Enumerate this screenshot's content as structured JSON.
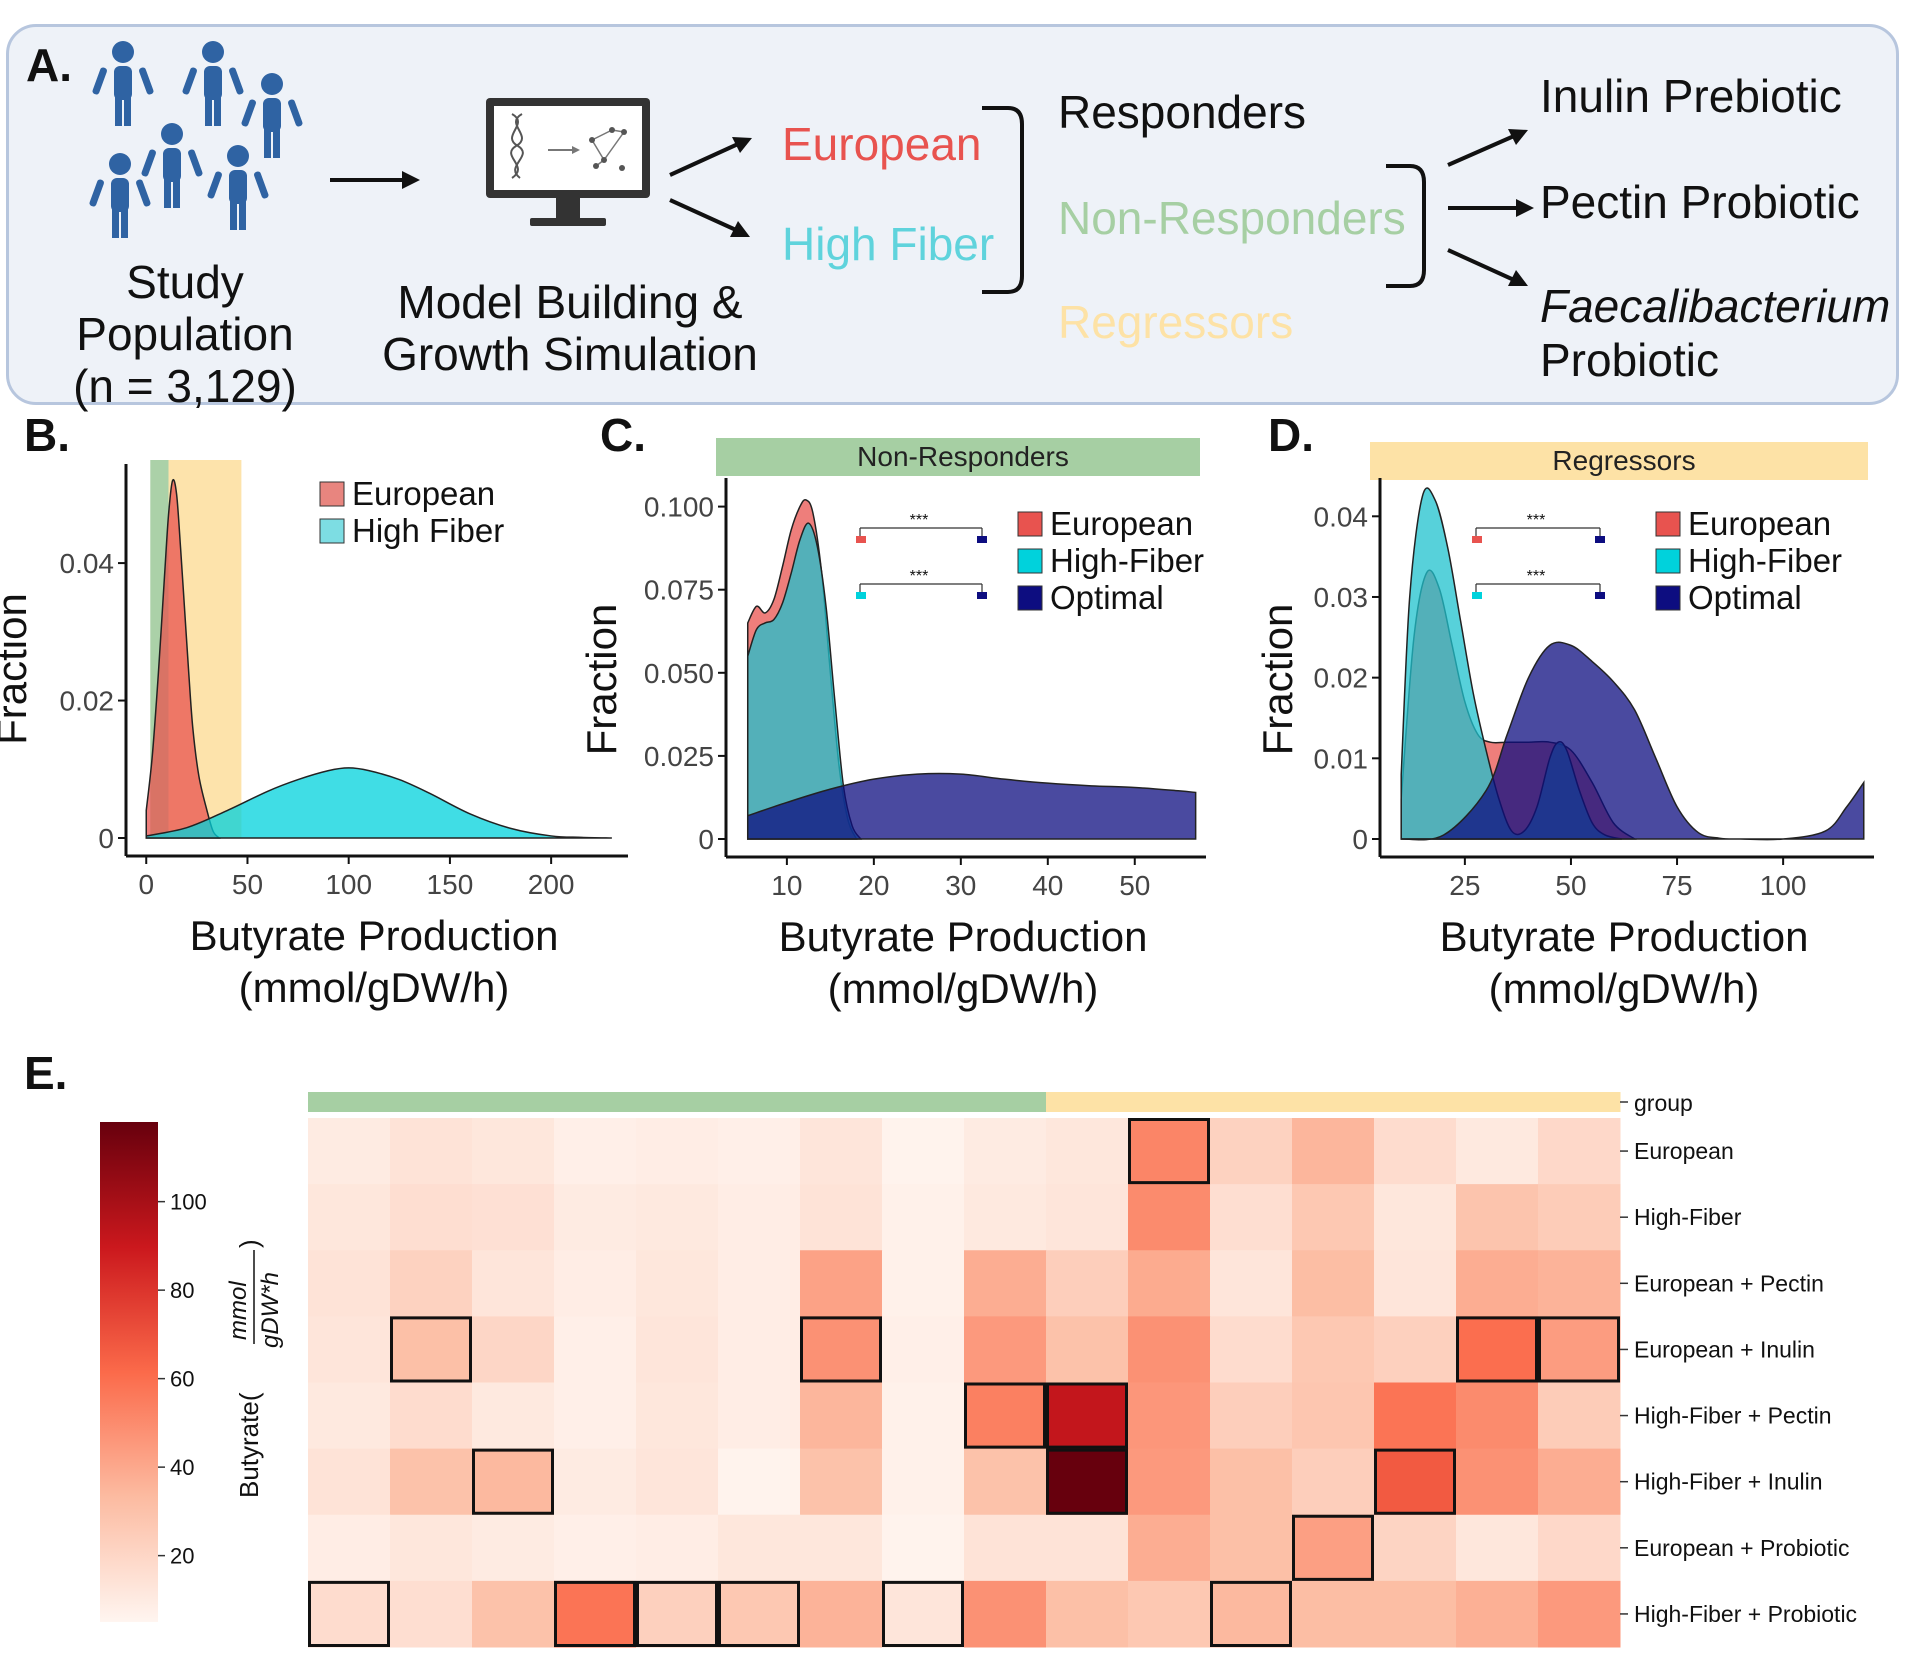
{
  "panel_a": {
    "label": "A.",
    "population_lines": [
      "Study",
      "Population",
      "(n = 3,129)"
    ],
    "model_lines": [
      "Model Building &",
      "Growth Simulation"
    ],
    "diets": [
      {
        "text": "European",
        "color": "#e8534f"
      },
      {
        "text": "High Fiber",
        "color": "#5fd3dc"
      }
    ],
    "responses": [
      {
        "text": "Responders",
        "color": "#111111"
      },
      {
        "text": "Non-Responders",
        "color": "#a6cfa3"
      },
      {
        "text": "Regressors",
        "color": "#fde2a6"
      }
    ],
    "treatments": [
      "Inulin Prebiotic",
      "Pectin Probiotic"
    ],
    "treatment3_italic": "Faecalibacterium",
    "treatment3_rest": "Probiotic",
    "icons": [
      "person-icon",
      "monitor-icon",
      "dna-icon",
      "network-icon",
      "arrow-icon"
    ]
  },
  "panel_labels": {
    "b": "B.",
    "c": "C.",
    "d": "D.",
    "e": "E."
  },
  "chart_data": [
    {
      "id": "B",
      "type": "area",
      "xlabel": [
        "Butyrate Production",
        "(mmol/gDW/h)"
      ],
      "ylabel": "Fraction",
      "xlim": [
        -10,
        235
      ],
      "ylim": [
        0,
        0.055
      ],
      "xticks": [
        0,
        50,
        100,
        150,
        200
      ],
      "xtick_labels": [
        "0",
        "50",
        "100",
        "150",
        "200"
      ],
      "yticks": [
        0,
        0.02,
        0.04
      ],
      "ytick_labels": [
        "0",
        "0.02",
        "0.04"
      ],
      "shaded_bands": [
        {
          "from": 2,
          "to": 11,
          "color": "#a6cfa3"
        },
        {
          "from": 11,
          "to": 47,
          "color": "#fde2a6"
        }
      ],
      "legend_position": "top-right",
      "series": [
        {
          "name": "European",
          "color": "#e8534f",
          "x": [
            0,
            3,
            6,
            9,
            11,
            13,
            15,
            17,
            19,
            21,
            23,
            26,
            30,
            33,
            36
          ],
          "y": [
            0.004,
            0.012,
            0.024,
            0.038,
            0.047,
            0.052,
            0.05,
            0.042,
            0.033,
            0.024,
            0.016,
            0.009,
            0.004,
            0.001,
            0
          ]
        },
        {
          "name": "High Fiber",
          "color": "#00d2dc",
          "x": [
            0,
            20,
            40,
            60,
            75,
            90,
            100,
            110,
            125,
            140,
            160,
            180,
            200,
            215,
            230
          ],
          "y": [
            0.0003,
            0.0015,
            0.004,
            0.0068,
            0.0085,
            0.0098,
            0.0102,
            0.0098,
            0.0085,
            0.0065,
            0.0035,
            0.0014,
            0.0003,
            0.0001,
            0
          ]
        }
      ],
      "legend": [
        "European",
        "High Fiber"
      ],
      "legend_colors": [
        "#e8857f",
        "#7ddde3"
      ]
    },
    {
      "id": "C",
      "type": "area",
      "title": "Non-Responders",
      "title_color": "#a6cfa3",
      "xlabel": [
        "Butyrate Production",
        "(mmol/gDW/h)"
      ],
      "ylabel": "Fraction",
      "xlim": [
        3,
        57.5
      ],
      "ylim": [
        0,
        0.108
      ],
      "xticks": [
        10,
        20,
        30,
        40,
        50
      ],
      "xtick_labels": [
        "10",
        "20",
        "30",
        "40",
        "50"
      ],
      "yticks": [
        0,
        0.025,
        0.05,
        0.075,
        0.1
      ],
      "ytick_labels": [
        "0",
        "0.025",
        "0.050",
        "0.075",
        "0.100"
      ],
      "legend_position": "top-right",
      "significance": [
        "***",
        "***"
      ],
      "series": [
        {
          "name": "European",
          "color": "#e8534f",
          "x": [
            5.5,
            6.5,
            7.5,
            8.5,
            9.5,
            10.5,
            11.5,
            12.2,
            13,
            14,
            15,
            16,
            17,
            18
          ],
          "y": [
            0.065,
            0.07,
            0.068,
            0.072,
            0.082,
            0.093,
            0.1,
            0.102,
            0.098,
            0.08,
            0.05,
            0.022,
            0.006,
            0
          ]
        },
        {
          "name": "High-Fiber",
          "color": "#1fc2ce",
          "x": [
            5.5,
            6.5,
            7.5,
            8.5,
            9.5,
            10.5,
            11.5,
            12.5,
            13.5,
            14.5,
            15.5,
            16.5,
            17.5,
            18.5
          ],
          "y": [
            0.055,
            0.063,
            0.065,
            0.066,
            0.071,
            0.08,
            0.09,
            0.095,
            0.088,
            0.07,
            0.042,
            0.016,
            0.004,
            0
          ]
        },
        {
          "name": "Optimal",
          "color": "#0d0d80",
          "x": [
            5.5,
            10,
            15,
            20,
            25,
            30,
            35,
            40,
            45,
            50,
            55,
            57
          ],
          "y": [
            0.007,
            0.011,
            0.015,
            0.018,
            0.0195,
            0.0195,
            0.018,
            0.0168,
            0.016,
            0.0155,
            0.0145,
            0.014
          ]
        }
      ],
      "legend": [
        "European",
        "High-Fiber",
        "Optimal"
      ],
      "legend_colors": [
        "#e8534f",
        "#00d2dc",
        "#0d0d80"
      ]
    },
    {
      "id": "D",
      "type": "area",
      "title": "Regressors",
      "title_color": "#fde2a6",
      "xlabel": [
        "Butyrate Production",
        "(mmol/gDW/h)"
      ],
      "ylabel": "Fraction",
      "xlim": [
        5,
        120
      ],
      "ylim": [
        0,
        0.0445
      ],
      "xticks": [
        25,
        50,
        75,
        100
      ],
      "xtick_labels": [
        "25",
        "50",
        "75",
        "100"
      ],
      "yticks": [
        0,
        0.01,
        0.02,
        0.03,
        0.04
      ],
      "ytick_labels": [
        "0",
        "0.01",
        "0.02",
        "0.03",
        "0.04"
      ],
      "legend_position": "top-right",
      "significance": [
        "***",
        "***"
      ],
      "series": [
        {
          "name": "European",
          "color": "#e8534f",
          "x": [
            10,
            13,
            16,
            19,
            22,
            25,
            28,
            31,
            35,
            40,
            45,
            50,
            55,
            60,
            65
          ],
          "y": [
            0.005,
            0.025,
            0.033,
            0.031,
            0.024,
            0.017,
            0.013,
            0.012,
            0.012,
            0.012,
            0.012,
            0.011,
            0.007,
            0.002,
            0
          ]
        },
        {
          "name": "High-Fiber",
          "color": "#1fc2ce",
          "x": [
            10,
            12,
            15,
            18,
            21,
            24,
            27,
            30,
            33,
            36,
            39,
            42,
            45,
            47,
            49,
            52,
            55,
            58,
            62
          ],
          "y": [
            0.008,
            0.03,
            0.0425,
            0.042,
            0.036,
            0.027,
            0.018,
            0.011,
            0.005,
            0.001,
            0.001,
            0.004,
            0.01,
            0.012,
            0.011,
            0.006,
            0.002,
            0.0005,
            0
          ]
        },
        {
          "name": "Optimal",
          "color": "#0d0d80",
          "x": [
            10,
            20,
            30,
            35,
            40,
            45,
            50,
            55,
            60,
            65,
            70,
            75,
            80,
            85,
            90,
            100,
            110,
            115,
            119
          ],
          "y": [
            0,
            0.0005,
            0.006,
            0.013,
            0.02,
            0.024,
            0.024,
            0.022,
            0.0195,
            0.016,
            0.01,
            0.004,
            0.0008,
            0.0001,
            0,
            0,
            0.001,
            0.004,
            0.007
          ]
        }
      ],
      "legend": [
        "European",
        "High-Fiber",
        "Optimal"
      ],
      "legend_colors": [
        "#e8534f",
        "#00d2dc",
        "#0d0d80"
      ]
    },
    {
      "id": "E",
      "type": "heatmap",
      "group_label": "group",
      "group_colors": {
        "Non-Responders": "#a6cfa3",
        "Regressors": "#fde2a6"
      },
      "column_groups": [
        "Non-Responders",
        "Non-Responders",
        "Non-Responders",
        "Non-Responders",
        "Non-Responders",
        "Non-Responders",
        "Non-Responders",
        "Non-Responders",
        "Non-Responders",
        "Regressors",
        "Regressors",
        "Regressors",
        "Regressors",
        "Regressors",
        "Regressors",
        "Regressors"
      ],
      "rows": [
        "European",
        "High-Fiber",
        "European + Pectin",
        "European + Inulin",
        "High-Fiber + Pectin",
        "High-Fiber + Inulin",
        "European + Probiotic",
        "High-Fiber + Probiotic"
      ],
      "colorbar_label": "Butyrate",
      "colorbar_unit_num": "mmol",
      "colorbar_unit_den": "gDW*h",
      "colorbar_range": [
        5,
        118
      ],
      "colorbar_ticks": [
        20,
        40,
        60,
        80,
        100
      ],
      "colorbar_tick_labels": [
        "20",
        "40",
        "60",
        "80",
        "100"
      ],
      "values": [
        [
          10,
          14,
          12,
          8,
          9,
          8,
          13,
          6,
          10,
          12,
          52,
          22,
          35,
          17,
          11,
          19
        ],
        [
          12,
          16,
          15,
          10,
          11,
          9,
          14,
          7,
          11,
          13,
          50,
          16,
          27,
          12,
          29,
          25
        ],
        [
          14,
          22,
          13,
          9,
          12,
          9,
          42,
          7,
          38,
          24,
          39,
          13,
          32,
          13,
          38,
          36
        ],
        [
          13,
          31,
          20,
          8,
          13,
          9,
          48,
          8,
          45,
          30,
          48,
          17,
          27,
          23,
          60,
          44
        ],
        [
          11,
          17,
          11,
          8,
          12,
          9,
          35,
          7,
          54,
          92,
          46,
          24,
          28,
          58,
          50,
          25
        ],
        [
          14,
          30,
          34,
          10,
          13,
          6,
          30,
          7,
          30,
          118,
          45,
          31,
          24,
          67,
          48,
          38
        ],
        [
          9,
          12,
          10,
          8,
          9,
          12,
          12,
          6,
          14,
          14,
          38,
          31,
          43,
          21,
          12,
          19
        ],
        [
          17,
          16,
          30,
          58,
          23,
          27,
          36,
          13,
          48,
          31,
          27,
          34,
          32,
          32,
          37,
          45
        ]
      ],
      "highlighted": [
        [
          0,
          10
        ],
        [
          3,
          1
        ],
        [
          3,
          6
        ],
        [
          3,
          14
        ],
        [
          3,
          15
        ],
        [
          4,
          8
        ],
        [
          4,
          9
        ],
        [
          5,
          2
        ],
        [
          5,
          9
        ],
        [
          5,
          13
        ],
        [
          6,
          12
        ],
        [
          7,
          0
        ],
        [
          7,
          3
        ],
        [
          7,
          4
        ],
        [
          7,
          5
        ],
        [
          7,
          7
        ],
        [
          7,
          11
        ]
      ]
    }
  ]
}
